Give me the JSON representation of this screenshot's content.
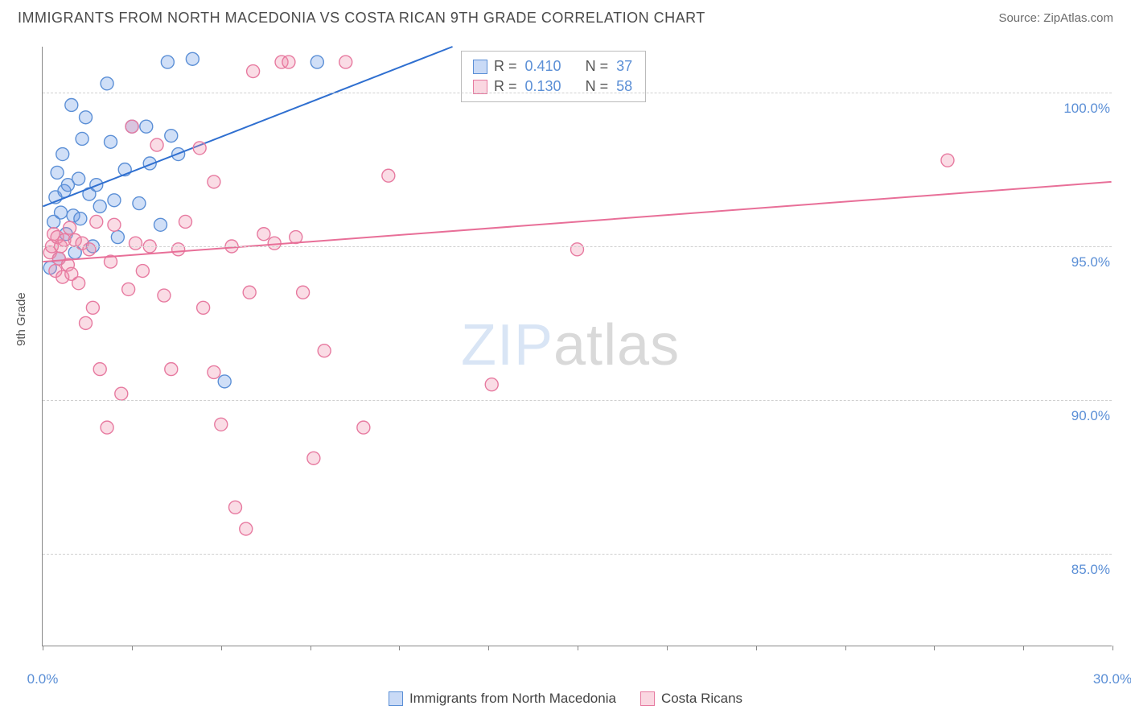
{
  "title": "IMMIGRANTS FROM NORTH MACEDONIA VS COSTA RICAN 9TH GRADE CORRELATION CHART",
  "source": "Source: ZipAtlas.com",
  "watermark": {
    "zip": "ZIP",
    "atlas": "atlas"
  },
  "y_axis_title": "9th Grade",
  "chart": {
    "type": "scatter",
    "xlim": [
      0,
      30
    ],
    "ylim": [
      82,
      101.5
    ],
    "x_ticks": [
      0,
      2.5,
      5,
      7.5,
      10,
      12.5,
      15,
      17.5,
      20,
      22.5,
      25,
      27.5,
      30
    ],
    "x_tick_labels": {
      "0": "0.0%",
      "30": "30.0%"
    },
    "y_gridlines": [
      85,
      90,
      95,
      100
    ],
    "y_tick_labels": {
      "85": "85.0%",
      "90": "90.0%",
      "95": "95.0%",
      "100": "100.0%"
    },
    "background_color": "#ffffff",
    "grid_color": "#d0d0d0",
    "axis_color": "#888888",
    "marker_radius": 8,
    "marker_stroke_width": 1.4,
    "line_width": 2
  },
  "series": [
    {
      "name": "Immigrants from North Macedonia",
      "key": "macedonia",
      "fill": "rgba(100,150,230,0.30)",
      "stroke": "#5b8fd6",
      "line_color": "#2f6fd0",
      "R": "0.410",
      "N": "37",
      "trend": {
        "x1": 0,
        "y1": 96.3,
        "x2": 11.5,
        "y2": 101.5
      },
      "points": [
        [
          0.2,
          94.3
        ],
        [
          0.3,
          95.8
        ],
        [
          0.35,
          96.6
        ],
        [
          0.4,
          97.4
        ],
        [
          0.45,
          94.6
        ],
        [
          0.5,
          96.1
        ],
        [
          0.55,
          98.0
        ],
        [
          0.6,
          96.8
        ],
        [
          0.65,
          95.4
        ],
        [
          0.7,
          97.0
        ],
        [
          0.8,
          99.6
        ],
        [
          0.85,
          96.0
        ],
        [
          0.9,
          94.8
        ],
        [
          1.0,
          97.2
        ],
        [
          1.05,
          95.9
        ],
        [
          1.1,
          98.5
        ],
        [
          1.2,
          99.2
        ],
        [
          1.3,
          96.7
        ],
        [
          1.4,
          95.0
        ],
        [
          1.5,
          97.0
        ],
        [
          1.6,
          96.3
        ],
        [
          1.8,
          100.3
        ],
        [
          1.9,
          98.4
        ],
        [
          2.0,
          96.5
        ],
        [
          2.1,
          95.3
        ],
        [
          2.3,
          97.5
        ],
        [
          2.5,
          98.9
        ],
        [
          2.7,
          96.4
        ],
        [
          2.9,
          98.9
        ],
        [
          3.0,
          97.7
        ],
        [
          3.3,
          95.7
        ],
        [
          3.5,
          101.0
        ],
        [
          3.8,
          98.0
        ],
        [
          4.2,
          101.1
        ],
        [
          5.1,
          90.6
        ],
        [
          7.7,
          101.0
        ],
        [
          3.6,
          98.6
        ]
      ]
    },
    {
      "name": "Costa Ricans",
      "key": "costarican",
      "fill": "rgba(240,140,170,0.30)",
      "stroke": "#e77aa0",
      "line_color": "#e86f98",
      "R": "0.130",
      "N": "58",
      "trend": {
        "x1": 0,
        "y1": 94.5,
        "x2": 30,
        "y2": 97.1
      },
      "points": [
        [
          0.2,
          94.8
        ],
        [
          0.25,
          95.0
        ],
        [
          0.3,
          95.4
        ],
        [
          0.35,
          94.2
        ],
        [
          0.4,
          95.3
        ],
        [
          0.45,
          94.6
        ],
        [
          0.5,
          95.0
        ],
        [
          0.55,
          94.0
        ],
        [
          0.6,
          95.2
        ],
        [
          0.7,
          94.4
        ],
        [
          0.75,
          95.6
        ],
        [
          0.8,
          94.1
        ],
        [
          0.9,
          95.2
        ],
        [
          1.0,
          93.8
        ],
        [
          1.1,
          95.1
        ],
        [
          1.2,
          92.5
        ],
        [
          1.3,
          94.9
        ],
        [
          1.4,
          93.0
        ],
        [
          1.5,
          95.8
        ],
        [
          1.6,
          91.0
        ],
        [
          1.8,
          89.1
        ],
        [
          1.9,
          94.5
        ],
        [
          2.0,
          95.7
        ],
        [
          2.2,
          90.2
        ],
        [
          2.4,
          93.6
        ],
        [
          2.5,
          98.9
        ],
        [
          2.6,
          95.1
        ],
        [
          2.8,
          94.2
        ],
        [
          3.0,
          95.0
        ],
        [
          3.2,
          98.3
        ],
        [
          3.4,
          93.4
        ],
        [
          3.6,
          91.0
        ],
        [
          3.8,
          94.9
        ],
        [
          4.0,
          95.8
        ],
        [
          4.4,
          98.2
        ],
        [
          4.5,
          93.0
        ],
        [
          4.8,
          90.9
        ],
        [
          5.0,
          89.2
        ],
        [
          5.3,
          95.0
        ],
        [
          5.4,
          86.5
        ],
        [
          5.7,
          85.8
        ],
        [
          5.8,
          93.5
        ],
        [
          5.9,
          100.7
        ],
        [
          6.2,
          95.4
        ],
        [
          6.5,
          95.1
        ],
        [
          6.7,
          101.0
        ],
        [
          6.9,
          101.0
        ],
        [
          7.1,
          95.3
        ],
        [
          7.3,
          93.5
        ],
        [
          7.6,
          88.1
        ],
        [
          7.9,
          91.6
        ],
        [
          8.5,
          101.0
        ],
        [
          9.0,
          89.1
        ],
        [
          9.7,
          97.3
        ],
        [
          12.6,
          90.5
        ],
        [
          15.0,
          94.9
        ],
        [
          25.4,
          97.8
        ],
        [
          4.8,
          97.1
        ]
      ]
    }
  ],
  "legend_top": {
    "rows": [
      {
        "swatch": "blue",
        "r_label": "R =",
        "r_val": "0.410",
        "n_label": "N =",
        "n_val": "37"
      },
      {
        "swatch": "pink",
        "r_label": "R =",
        "r_val": "0.130",
        "n_label": "N =",
        "n_val": "58"
      }
    ]
  },
  "legend_bottom": {
    "items": [
      {
        "swatch": "blue",
        "label": "Immigrants from North Macedonia"
      },
      {
        "swatch": "pink",
        "label": "Costa Ricans"
      }
    ]
  }
}
